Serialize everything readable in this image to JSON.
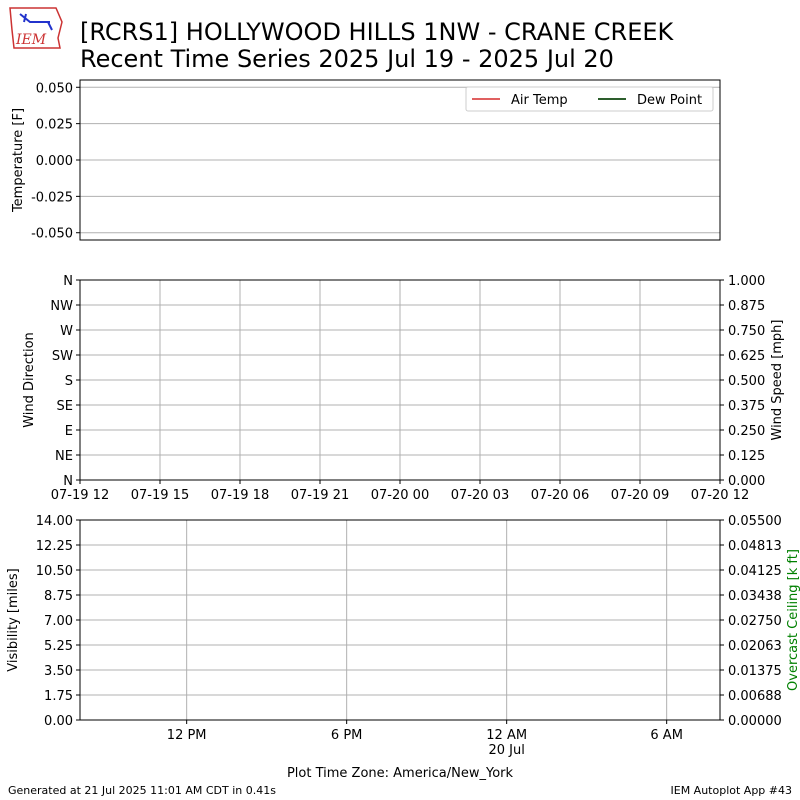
{
  "logo": "IEM",
  "title": "[RCRS1] HOLLYWOOD HILLS 1NW - CRANE CREEK",
  "subtitle": "Recent Time Series 2025 Jul 19 - 2025 Jul 20",
  "footer_left": "Generated at 21 Jul 2025 11:01 AM CDT in 0.41s",
  "footer_right": "IEM Autoplot App #43",
  "chart_data": [
    {
      "type": "line",
      "ylabel": "Temperature [F]",
      "ylim": [
        -0.055,
        0.055
      ],
      "yticks": [
        {
          "value": 0.05,
          "label": "0.050"
        },
        0.025,
        {
          "value": 0,
          "label": "0.000"
        },
        {
          "value": -0.025,
          "label": "-0.025"
        },
        {
          "value": -0.05,
          "label": "-0.050"
        }
      ],
      "xlim": [
        "2025-07-19T12:00",
        "2025-07-20T12:00"
      ],
      "series": [
        {
          "name": "Air Temp",
          "color": "#e06060",
          "values": []
        },
        {
          "name": "Dew Point",
          "color": "#2d5e2d",
          "values": []
        }
      ],
      "legend": "upper right",
      "grid": "y"
    },
    {
      "type": "line",
      "ylabel": "Wind Direction",
      "y2label": "Wind Speed [mph]",
      "ylim": [
        0,
        360
      ],
      "yticks": [
        {
          "value": 0,
          "label": "N"
        },
        {
          "value": 45,
          "label": "NE"
        },
        {
          "value": 90,
          "label": "E"
        },
        {
          "value": 135,
          "label": "SE"
        },
        {
          "value": 180,
          "label": "S"
        },
        {
          "value": 225,
          "label": "SW"
        },
        {
          "value": 270,
          "label": "W"
        },
        {
          "value": 315,
          "label": "NW"
        },
        {
          "value": 360,
          "label": "N"
        }
      ],
      "y2lim": [
        0,
        1
      ],
      "y2ticks": [
        {
          "value": 0,
          "label": "0.000"
        },
        0.125,
        {
          "value": 0.25,
          "label": "0.250"
        },
        0.375,
        {
          "value": 0.5,
          "label": "0.500"
        },
        0.625,
        {
          "value": 0.75,
          "label": "0.750"
        },
        0.875,
        {
          "value": 1,
          "label": "1.000"
        }
      ],
      "xlim": [
        "2025-07-19T12:00",
        "2025-07-20T12:00"
      ],
      "xticks": [
        {
          "value": "2025-07-19T12:00",
          "label": "07-19 12"
        },
        {
          "value": "2025-07-19T15:00",
          "label": "07-19 15"
        },
        {
          "value": "2025-07-19T18:00",
          "label": "07-19 18"
        },
        {
          "value": "2025-07-19T21:00",
          "label": "07-19 21"
        },
        {
          "value": "2025-07-20T00:00",
          "label": "07-20 00"
        },
        {
          "value": "2025-07-20T03:00",
          "label": "07-20 03"
        },
        {
          "value": "2025-07-20T06:00",
          "label": "07-20 06"
        },
        {
          "value": "2025-07-20T09:00",
          "label": "07-20 09"
        },
        {
          "value": "2025-07-20T12:00",
          "label": "07-20 12"
        }
      ],
      "grid": "xy"
    },
    {
      "type": "line",
      "ylabel": "Visibility [miles]",
      "y2label": "Overcast Ceiling [k ft]",
      "y2label_color": "#008000",
      "xlabel": "Plot Time Zone: America/New_York",
      "ylim": [
        0,
        14
      ],
      "yticks": [
        {
          "value": 0,
          "label": "0.00"
        },
        1.75,
        {
          "value": 3.5,
          "label": "3.50"
        },
        5.25,
        {
          "value": 7,
          "label": "7.00"
        },
        8.75,
        {
          "value": 10.5,
          "label": "10.50"
        },
        12.25,
        {
          "value": 14,
          "label": "14.00"
        }
      ],
      "y2lim": [
        0,
        0.055
      ],
      "y2ticks": [
        {
          "value": 0,
          "label": "0.00000"
        },
        {
          "value": 0.006875,
          "label": "0.00688"
        },
        0.01375,
        {
          "value": 0.020625,
          "label": "0.02063"
        },
        {
          "value": 0.0275,
          "label": "0.02750"
        },
        {
          "value": 0.034375,
          "label": "0.03438"
        },
        0.04125,
        {
          "value": 0.048125,
          "label": "0.04813"
        },
        {
          "value": 0.055,
          "label": "0.05500"
        }
      ],
      "xlim": [
        "2025-07-19T08:00",
        "2025-07-20T08:00"
      ],
      "xticks": [
        {
          "value": "2025-07-19T12:00",
          "label": "12 PM"
        },
        {
          "value": "2025-07-19T18:00",
          "label": "6 PM"
        },
        {
          "value": "2025-07-20T00:00",
          "label": "12 AM\n20 Jul"
        },
        {
          "value": "2025-07-20T06:00",
          "label": "6 AM"
        }
      ],
      "grid": "xy"
    }
  ]
}
